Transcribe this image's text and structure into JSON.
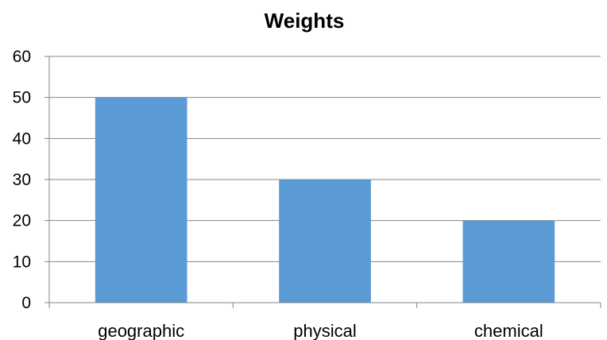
{
  "chart_data": {
    "type": "bar",
    "title": "Weights",
    "categories": [
      "geographic",
      "physical",
      "chemical"
    ],
    "values": [
      50,
      30,
      20
    ],
    "ylim": [
      0,
      60
    ],
    "yticks": [
      "0",
      "10",
      "20",
      "30",
      "40",
      "50",
      "60"
    ],
    "grid": true,
    "legend": "none",
    "colors": {
      "bar": "#5b9bd5",
      "grid": "#868686",
      "axis": "#868686"
    }
  }
}
